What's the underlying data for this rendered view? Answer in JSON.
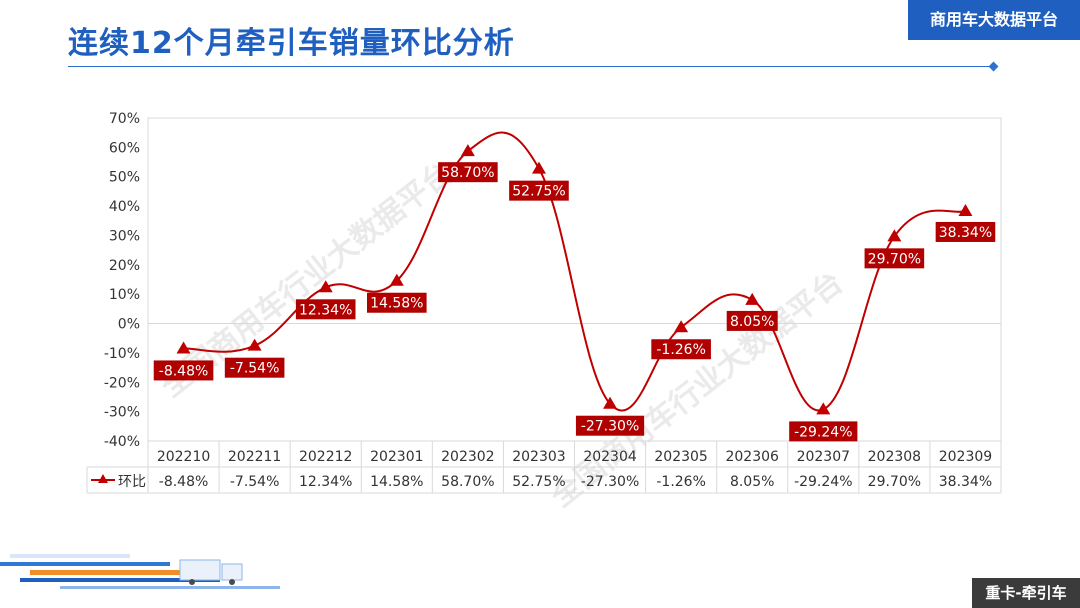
{
  "header": {
    "title": "连续12个月牵引车销量环比分析",
    "brand_badge": "商用车大数据平台"
  },
  "watermarks": [
    "全国商用车行业大数据平台",
    "全国商用车行业大数据平台"
  ],
  "footer": {
    "corner_tag": "重卡-牵引车"
  },
  "colors": {
    "accent": "#1f5fbf",
    "series": "#c00000",
    "label_bg": "#b00000",
    "grid": "#d9d9d9"
  },
  "chart_data": {
    "type": "line",
    "title": "",
    "categories": [
      "202210",
      "202211",
      "202212",
      "202301",
      "202302",
      "202303",
      "202304",
      "202305",
      "202306",
      "202307",
      "202308",
      "202309"
    ],
    "series": [
      {
        "name": "环比",
        "marker": "triangle",
        "values": [
          -8.48,
          -7.54,
          12.34,
          14.58,
          58.7,
          52.75,
          -27.3,
          -1.26,
          8.05,
          -29.24,
          29.7,
          38.34
        ],
        "labels": [
          "-8.48%",
          "-7.54%",
          "12.34%",
          "14.58%",
          "58.70%",
          "52.75%",
          "-27.30%",
          "-1.26%",
          "8.05%",
          "-29.24%",
          "29.70%",
          "38.34%"
        ]
      }
    ],
    "yticks": [
      "70%",
      "60%",
      "50%",
      "40%",
      "30%",
      "20%",
      "10%",
      "0%",
      "-10%",
      "-20%",
      "-30%",
      "-40%"
    ],
    "ylim": [
      -40,
      70
    ],
    "grid": false,
    "data_table": true,
    "xlabel": "",
    "ylabel": ""
  }
}
